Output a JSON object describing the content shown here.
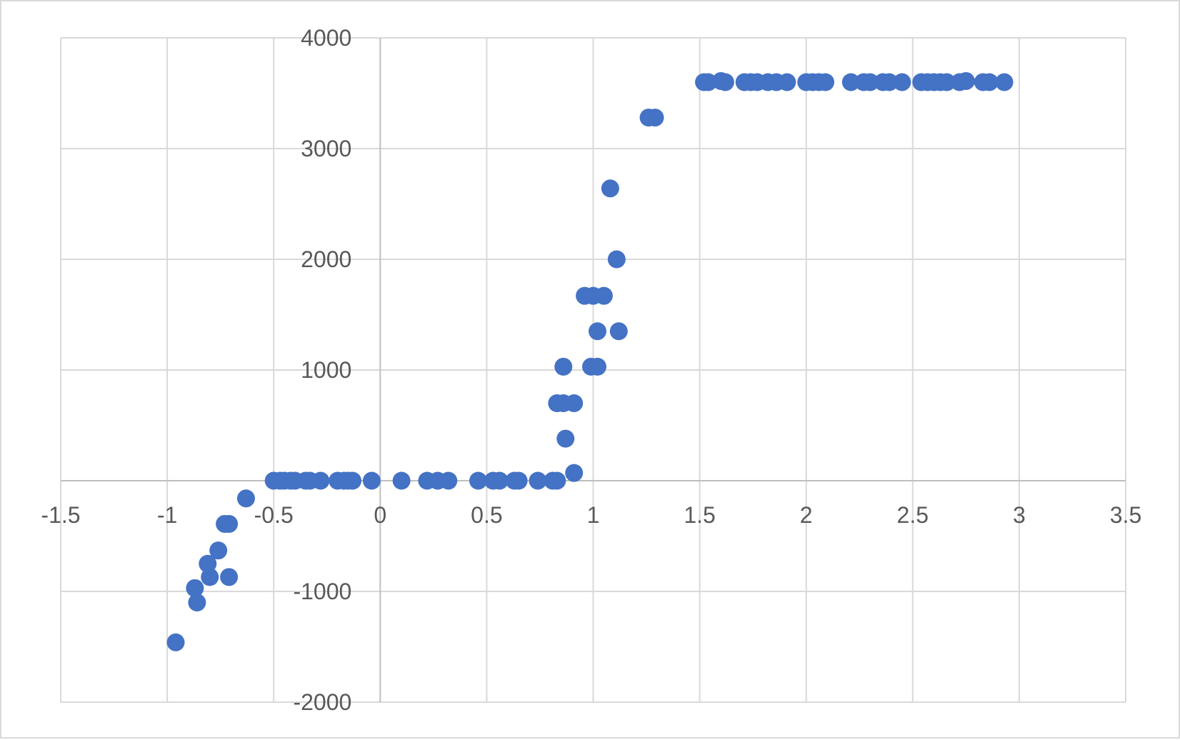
{
  "chart_data": {
    "type": "scatter",
    "title": "",
    "xlabel": "",
    "ylabel": "",
    "xlim": [
      -1.5,
      3.5
    ],
    "ylim": [
      -2000,
      4000
    ],
    "x_ticks": [
      -1.5,
      -1,
      -0.5,
      0,
      0.5,
      1,
      1.5,
      2,
      2.5,
      3,
      3.5
    ],
    "y_ticks": [
      -2000,
      -1000,
      0,
      1000,
      2000,
      3000,
      4000
    ],
    "x_tick_labels": [
      "-1.5",
      "-1",
      "-0.5",
      "0",
      "0.5",
      "1",
      "1.5",
      "2",
      "2.5",
      "3",
      "3.5"
    ],
    "y_tick_labels": [
      "-2000",
      "-1000",
      "0",
      "1000",
      "2000",
      "3000",
      "4000"
    ],
    "grid": true,
    "legend": "none",
    "marker_color": "#4472C4",
    "grid_color": "#d9d9d9",
    "axis_color": "#bfbfbf",
    "series": [
      {
        "values": [
          [
            -0.96,
            -1460
          ],
          [
            -0.87,
            -970
          ],
          [
            -0.86,
            -1100
          ],
          [
            -0.81,
            -750
          ],
          [
            -0.8,
            -870
          ],
          [
            -0.76,
            -630
          ],
          [
            -0.73,
            -390
          ],
          [
            -0.71,
            -390
          ],
          [
            -0.71,
            -870
          ],
          [
            -0.63,
            -160
          ],
          [
            -0.5,
            0
          ],
          [
            -0.47,
            0
          ],
          [
            -0.45,
            0
          ],
          [
            -0.42,
            0
          ],
          [
            -0.4,
            0
          ],
          [
            -0.35,
            0
          ],
          [
            -0.33,
            0
          ],
          [
            -0.28,
            0
          ],
          [
            -0.2,
            0
          ],
          [
            -0.17,
            0
          ],
          [
            -0.15,
            0
          ],
          [
            -0.13,
            0
          ],
          [
            -0.04,
            0
          ],
          [
            0.1,
            0
          ],
          [
            0.22,
            0
          ],
          [
            0.27,
            0
          ],
          [
            0.32,
            0
          ],
          [
            0.46,
            0
          ],
          [
            0.53,
            0
          ],
          [
            0.56,
            0
          ],
          [
            0.63,
            0
          ],
          [
            0.65,
            0
          ],
          [
            0.74,
            0
          ],
          [
            0.81,
            0
          ],
          [
            0.83,
            0
          ],
          [
            0.83,
            700
          ],
          [
            0.86,
            700
          ],
          [
            0.86,
            1030
          ],
          [
            0.87,
            380
          ],
          [
            0.91,
            700
          ],
          [
            0.91,
            70
          ],
          [
            0.96,
            1670
          ],
          [
            0.99,
            1030
          ],
          [
            1.0,
            1670
          ],
          [
            1.02,
            1030
          ],
          [
            1.02,
            1350
          ],
          [
            1.05,
            1670
          ],
          [
            1.08,
            2640
          ],
          [
            1.11,
            2000
          ],
          [
            1.12,
            1350
          ],
          [
            1.26,
            3280
          ],
          [
            1.29,
            3280
          ],
          [
            1.52,
            3600
          ],
          [
            1.54,
            3600
          ],
          [
            1.6,
            3610
          ],
          [
            1.62,
            3600
          ],
          [
            1.71,
            3600
          ],
          [
            1.74,
            3600
          ],
          [
            1.77,
            3600
          ],
          [
            1.82,
            3600
          ],
          [
            1.86,
            3600
          ],
          [
            1.91,
            3600
          ],
          [
            2.0,
            3600
          ],
          [
            2.03,
            3600
          ],
          [
            2.06,
            3600
          ],
          [
            2.09,
            3600
          ],
          [
            2.21,
            3600
          ],
          [
            2.27,
            3600
          ],
          [
            2.3,
            3600
          ],
          [
            2.36,
            3600
          ],
          [
            2.39,
            3600
          ],
          [
            2.45,
            3600
          ],
          [
            2.54,
            3600
          ],
          [
            2.57,
            3600
          ],
          [
            2.6,
            3600
          ],
          [
            2.63,
            3600
          ],
          [
            2.66,
            3600
          ],
          [
            2.72,
            3600
          ],
          [
            2.75,
            3610
          ],
          [
            2.83,
            3600
          ],
          [
            2.86,
            3600
          ],
          [
            2.93,
            3600
          ]
        ]
      }
    ]
  }
}
